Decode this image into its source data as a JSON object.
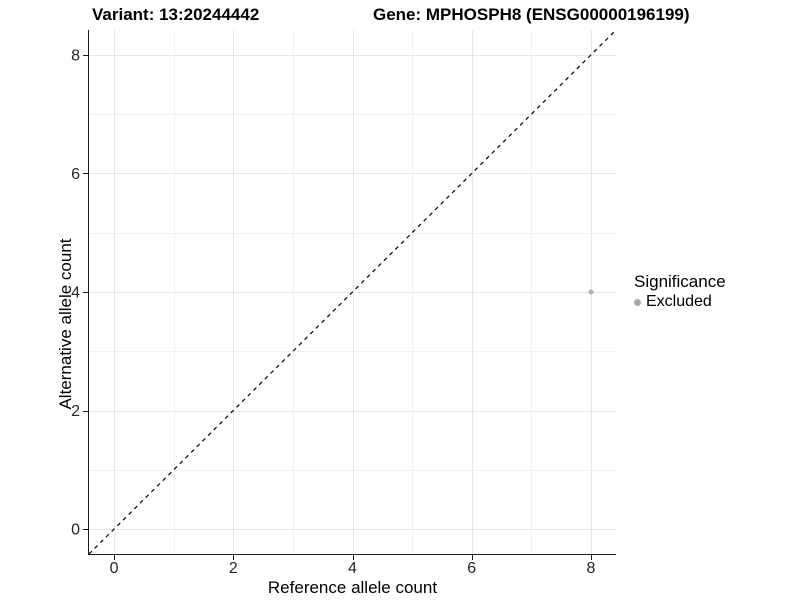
{
  "chart_data": {
    "type": "scatter",
    "title_left": "Variant: 13:20244442",
    "title_right": "Gene: MPHOSPH8 (ENSG00000196199)",
    "xlabel": "Reference allele count",
    "ylabel": "Alternative allele count",
    "xlim": [
      -0.42,
      8.42
    ],
    "ylim": [
      -0.42,
      8.42
    ],
    "x_ticks": [
      0,
      2,
      4,
      6,
      8
    ],
    "y_ticks": [
      0,
      2,
      4,
      6,
      8
    ],
    "x_minor_ticks": [
      1,
      3,
      5,
      7
    ],
    "y_minor_ticks": [
      1,
      3,
      5,
      7
    ],
    "grid": true,
    "legend_position": "right",
    "reference_line": {
      "style": "dashed",
      "from": [
        -0.42,
        -0.42
      ],
      "to": [
        8.42,
        8.42
      ],
      "color": "#000000"
    },
    "series": [
      {
        "name": "Excluded",
        "color": "#b2b2b2",
        "points": [
          {
            "x": 8,
            "y": 4
          }
        ]
      }
    ],
    "legend": {
      "title": "Significance",
      "entries": [
        {
          "label": "Excluded",
          "color": "#a9a9a9"
        }
      ]
    }
  },
  "colors": {
    "background": "#ffffff",
    "grid_major": "#e6e6e6",
    "grid_minor": "#f1f1f1",
    "axis_line": "#1a1a1a",
    "tick_mark": "#1a1a1a",
    "tick_label": "#262626",
    "excluded_point": "#b2b2b2"
  }
}
